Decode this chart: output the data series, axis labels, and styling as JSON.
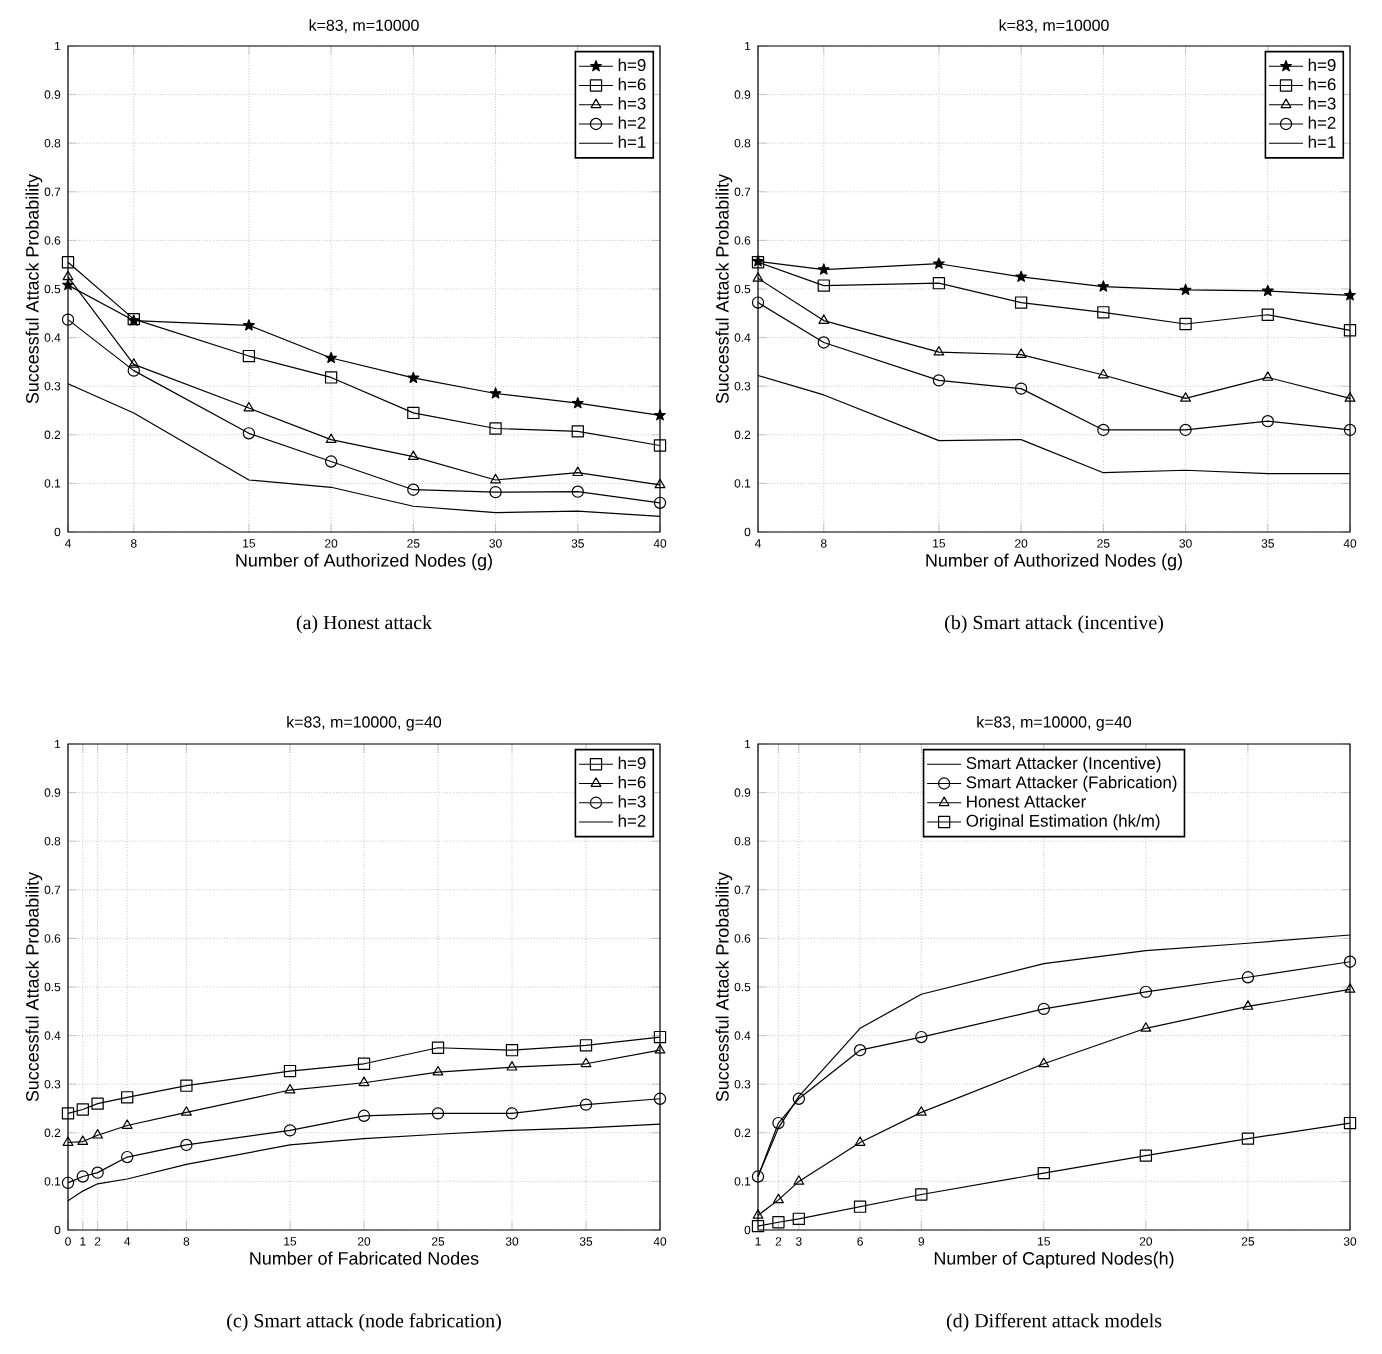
{
  "chart_data": [
    {
      "type": "line",
      "title": "k=83, m=10000",
      "xlabel": "Number of Authorized Nodes (g)",
      "ylabel": "Successful Attack Probability",
      "annotations": [
        "(a)  Honest attack"
      ],
      "x": [
        4,
        8,
        15,
        20,
        25,
        30,
        35,
        40
      ],
      "xlim": [
        4,
        40
      ],
      "ylim": [
        0,
        1
      ],
      "xticks": [
        4,
        8,
        15,
        20,
        25,
        30,
        35,
        40
      ],
      "yticks": [
        0,
        0.1,
        0.2,
        0.3,
        0.4,
        0.5,
        0.6,
        0.7,
        0.8,
        0.9,
        1
      ],
      "grid": true,
      "legend": "top right",
      "series": [
        {
          "name": "h=9",
          "color": "#000000",
          "marker": "star",
          "values": [
            0.508,
            0.435,
            0.425,
            0.358,
            0.317,
            0.285,
            0.265,
            0.24
          ]
        },
        {
          "name": "h=6",
          "color": "#000000",
          "marker": "square",
          "values": [
            0.555,
            0.438,
            0.362,
            0.318,
            0.245,
            0.213,
            0.207,
            0.178
          ]
        },
        {
          "name": "h=3",
          "color": "#000000",
          "marker": "triangle",
          "values": [
            0.525,
            0.345,
            0.255,
            0.19,
            0.155,
            0.107,
            0.122,
            0.097
          ]
        },
        {
          "name": "h=2",
          "color": "#000000",
          "marker": "circle",
          "values": [
            0.437,
            0.332,
            0.203,
            0.145,
            0.087,
            0.082,
            0.083,
            0.06
          ]
        },
        {
          "name": "h=1",
          "color": "#000000",
          "marker": "none",
          "values": [
            0.305,
            0.245,
            0.107,
            0.092,
            0.053,
            0.04,
            0.043,
            0.032
          ]
        }
      ]
    },
    {
      "type": "line",
      "title": "k=83, m=10000",
      "xlabel": "Number of Authorized Nodes (g)",
      "ylabel": "Successful Attack Probability",
      "annotations": [
        "(b)  Smart attack (incentive)"
      ],
      "x": [
        4,
        8,
        15,
        20,
        25,
        30,
        35,
        40
      ],
      "xlim": [
        4,
        40
      ],
      "ylim": [
        0,
        1
      ],
      "xticks": [
        4,
        8,
        15,
        20,
        25,
        30,
        35,
        40
      ],
      "yticks": [
        0,
        0.1,
        0.2,
        0.3,
        0.4,
        0.5,
        0.6,
        0.7,
        0.8,
        0.9,
        1
      ],
      "grid": true,
      "legend": "top right",
      "series": [
        {
          "name": "h=9",
          "color": "#000000",
          "marker": "star",
          "values": [
            0.557,
            0.54,
            0.552,
            0.525,
            0.505,
            0.498,
            0.496,
            0.487
          ]
        },
        {
          "name": "h=6",
          "color": "#000000",
          "marker": "square",
          "values": [
            0.555,
            0.507,
            0.512,
            0.472,
            0.452,
            0.428,
            0.447,
            0.415
          ]
        },
        {
          "name": "h=3",
          "color": "#000000",
          "marker": "triangle",
          "values": [
            0.522,
            0.435,
            0.37,
            0.365,
            0.323,
            0.275,
            0.318,
            0.275
          ]
        },
        {
          "name": "h=2",
          "color": "#000000",
          "marker": "circle",
          "values": [
            0.472,
            0.39,
            0.312,
            0.295,
            0.21,
            0.21,
            0.228,
            0.21
          ]
        },
        {
          "name": "h=1",
          "color": "#000000",
          "marker": "none",
          "values": [
            0.322,
            0.282,
            0.188,
            0.19,
            0.122,
            0.127,
            0.12,
            0.12
          ]
        }
      ]
    },
    {
      "type": "line",
      "title": "k=83, m=10000, g=40",
      "xlabel": "Number of Fabricated Nodes",
      "ylabel": "Successful Attack Probability",
      "annotations": [
        "(c)  Smart attack (node fabrication)"
      ],
      "x": [
        0,
        1,
        2,
        4,
        8,
        15,
        20,
        25,
        30,
        35,
        40
      ],
      "xlim": [
        0,
        40
      ],
      "ylim": [
        0,
        1
      ],
      "xticks": [
        0,
        1,
        2,
        4,
        8,
        15,
        20,
        25,
        30,
        35,
        40
      ],
      "yticks": [
        0,
        0.1,
        0.2,
        0.3,
        0.4,
        0.5,
        0.6,
        0.7,
        0.8,
        0.9,
        1
      ],
      "grid": true,
      "legend": "top right",
      "series": [
        {
          "name": "h=9",
          "color": "#000000",
          "marker": "square",
          "values": [
            0.24,
            0.248,
            0.26,
            0.273,
            0.297,
            0.327,
            0.342,
            0.375,
            0.37,
            0.38,
            0.397
          ]
        },
        {
          "name": "h=6",
          "color": "#000000",
          "marker": "triangle",
          "values": [
            0.18,
            0.182,
            0.195,
            0.215,
            0.242,
            0.288,
            0.303,
            0.325,
            0.335,
            0.342,
            0.37
          ]
        },
        {
          "name": "h=3",
          "color": "#000000",
          "marker": "circle",
          "values": [
            0.097,
            0.11,
            0.118,
            0.15,
            0.175,
            0.205,
            0.235,
            0.24,
            0.24,
            0.258,
            0.27
          ]
        },
        {
          "name": "h=2",
          "color": "#000000",
          "marker": "none",
          "values": [
            0.06,
            0.08,
            0.095,
            0.105,
            0.135,
            0.175,
            0.188,
            0.197,
            0.205,
            0.21,
            0.218
          ]
        }
      ]
    },
    {
      "type": "line",
      "title": "k=83, m=10000, g=40",
      "xlabel": "Number of Captured Nodes(h)",
      "ylabel": "Successful Attack Probability",
      "annotations": [
        "(d)  Different attack models"
      ],
      "x": [
        1,
        2,
        3,
        6,
        9,
        15,
        20,
        25,
        30
      ],
      "xlim": [
        1,
        30
      ],
      "ylim": [
        0,
        1
      ],
      "xticks": [
        1,
        2,
        3,
        6,
        9,
        15,
        20,
        25,
        30
      ],
      "yticks": [
        0,
        0.1,
        0.2,
        0.3,
        0.4,
        0.5,
        0.6,
        0.7,
        0.8,
        0.9,
        1
      ],
      "grid": true,
      "legend": "top",
      "series": [
        {
          "name": "Smart Attacker (Incentive)",
          "color": "#000000",
          "marker": "none",
          "values": [
            0.11,
            0.21,
            0.275,
            0.415,
            0.485,
            0.548,
            0.575,
            0.59,
            0.607
          ]
        },
        {
          "name": "Smart Attacker (Fabrication)",
          "color": "#000000",
          "marker": "circle",
          "values": [
            0.11,
            0.22,
            0.27,
            0.37,
            0.397,
            0.455,
            0.49,
            0.52,
            0.552
          ]
        },
        {
          "name": "Honest Attacker",
          "color": "#000000",
          "marker": "triangle",
          "values": [
            0.03,
            0.062,
            0.1,
            0.18,
            0.242,
            0.342,
            0.415,
            0.46,
            0.495
          ]
        },
        {
          "name": "Original Estimation (hk/m)",
          "color": "#000000",
          "marker": "square",
          "values": [
            0.008,
            0.016,
            0.023,
            0.048,
            0.073,
            0.117,
            0.153,
            0.188,
            0.22
          ]
        }
      ]
    }
  ]
}
